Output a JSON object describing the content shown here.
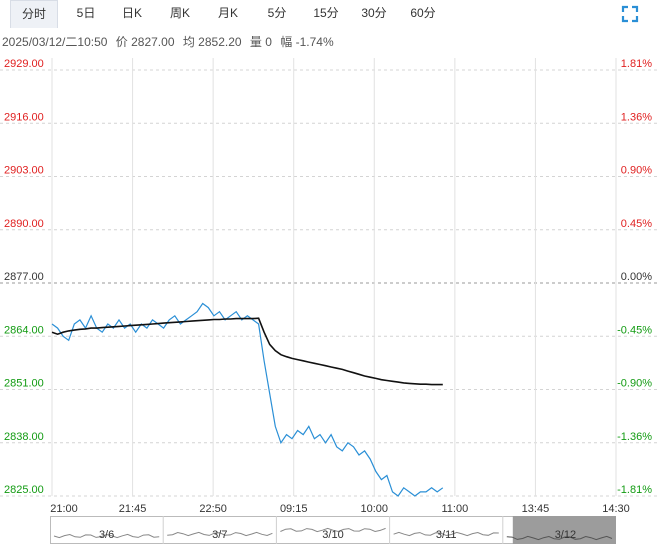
{
  "tabs": [
    {
      "label": "分时",
      "active": true
    },
    {
      "label": "5日"
    },
    {
      "label": "日K"
    },
    {
      "label": "周K"
    },
    {
      "label": "月K"
    },
    {
      "label": "5分"
    },
    {
      "label": "15分"
    },
    {
      "label": "30分"
    },
    {
      "label": "60分"
    }
  ],
  "info": {
    "datetime": "2025/03/12/二10:50",
    "price": "价 2827.00",
    "avg": "均 2852.20",
    "volume": "量 0",
    "change": "幅 -1.74%"
  },
  "colors": {
    "up": "#e02020",
    "down": "#129b12",
    "neutral": "#333333",
    "price_line": "#2a8fd6",
    "avg_line": "#111111"
  },
  "icons": {
    "fullscreen": "fullscreen-icon"
  },
  "chart_data": {
    "type": "line",
    "y_left_ticks": [
      "2929.00",
      "2916.00",
      "2903.00",
      "2890.00",
      "2877.00",
      "2864.00",
      "2851.00",
      "2838.00",
      "2825.00"
    ],
    "y_right_ticks": [
      "1.81%",
      "1.36%",
      "0.90%",
      "0.45%",
      "0.00%",
      "-0.45%",
      "-0.90%",
      "-1.36%",
      "-1.81%"
    ],
    "ylim": [
      2825,
      2929
    ],
    "prev_close": 2877,
    "x_ticks": [
      "21:00",
      "21:45",
      "22:50",
      "09:15",
      "10:00",
      "11:00",
      "13:45",
      "14:30"
    ],
    "session_count": 8,
    "series": [
      {
        "values": [
          2867,
          2866,
          2864,
          2863,
          2867,
          2868,
          2866,
          2869,
          2866,
          2865,
          2867,
          2866,
          2868,
          2866,
          2867,
          2865,
          2867,
          2866,
          2868,
          2867,
          2866,
          2868,
          2869,
          2867,
          2868,
          2869,
          2870,
          2872,
          2871,
          2869,
          2870,
          2868,
          2869,
          2870,
          2868,
          2869,
          2868,
          2867,
          2858,
          2850,
          2842,
          2838,
          2840,
          2839,
          2841,
          2840,
          2842,
          2839,
          2840,
          2838,
          2840,
          2837,
          2836,
          2838,
          2837,
          2835,
          2836,
          2834,
          2831,
          2829,
          2830,
          2826,
          2825,
          2827,
          2826,
          2825,
          2826,
          2826,
          2827,
          2826,
          2827
        ]
      },
      {
        "values": [
          2865,
          2864.5,
          2865,
          2865.3,
          2865.5,
          2865.7,
          2865.8,
          2866,
          2866,
          2866.1,
          2866.2,
          2866.3,
          2866.4,
          2866.5,
          2866.6,
          2866.7,
          2866.8,
          2866.9,
          2867,
          2867.1,
          2867.2,
          2867.3,
          2867.4,
          2867.5,
          2867.6,
          2867.7,
          2867.8,
          2867.9,
          2868,
          2868.1,
          2868.1,
          2868.2,
          2868.2,
          2868.3,
          2868.3,
          2868.3,
          2868.3,
          2868.4,
          2865,
          2862,
          2860.5,
          2859.5,
          2859,
          2858.6,
          2858.3,
          2858,
          2857.7,
          2857.4,
          2857.1,
          2856.8,
          2856.5,
          2856.2,
          2855.9,
          2855.5,
          2855.1,
          2854.7,
          2854.3,
          2854,
          2853.7,
          2853.4,
          2853.2,
          2853,
          2852.8,
          2852.6,
          2852.5,
          2852.4,
          2852.3,
          2852.3,
          2852.2,
          2852.2,
          2852.2
        ]
      }
    ],
    "navigator": {
      "labels": [
        "3/6",
        "3/7",
        "3/10",
        "3/11",
        "3/12"
      ],
      "selected": "3/12"
    }
  }
}
